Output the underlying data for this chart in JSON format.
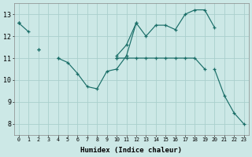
{
  "xlabel": "Humidex (Indice chaleur)",
  "bg_color": "#cce8e6",
  "grid_color": "#aacfcc",
  "line_color": "#1a6e68",
  "ylim": [
    7.5,
    13.5
  ],
  "xlim": [
    -0.5,
    23.5
  ],
  "lines": [
    [
      12.6,
      12.2,
      null,
      null,
      null,
      null,
      null,
      null,
      null,
      null,
      11.1,
      11.6,
      12.6,
      12.0,
      12.5,
      12.5,
      12.3,
      13.0,
      13.2,
      13.2,
      12.4,
      null,
      null,
      null
    ],
    [
      null,
      null,
      11.4,
      null,
      11.0,
      10.8,
      10.3,
      9.7,
      9.6,
      10.4,
      10.5,
      11.1,
      12.6,
      null,
      null,
      null,
      null,
      null,
      null,
      null,
      null,
      null,
      null,
      null
    ],
    [
      12.6,
      null,
      11.4,
      null,
      11.0,
      null,
      null,
      null,
      null,
      null,
      11.0,
      11.0,
      11.0,
      11.0,
      11.0,
      11.0,
      11.0,
      11.0,
      11.0,
      10.5,
      null,
      null,
      null,
      null
    ],
    [
      12.6,
      null,
      null,
      null,
      null,
      null,
      null,
      null,
      null,
      null,
      11.0,
      null,
      null,
      null,
      null,
      null,
      null,
      null,
      null,
      null,
      10.5,
      9.3,
      8.5,
      8.0
    ]
  ],
  "yticks": [
    8,
    9,
    10,
    11,
    12,
    13
  ],
  "xticks": [
    0,
    1,
    2,
    3,
    4,
    5,
    6,
    7,
    8,
    9,
    10,
    11,
    12,
    13,
    14,
    15,
    16,
    17,
    18,
    19,
    20,
    21,
    22,
    23
  ]
}
